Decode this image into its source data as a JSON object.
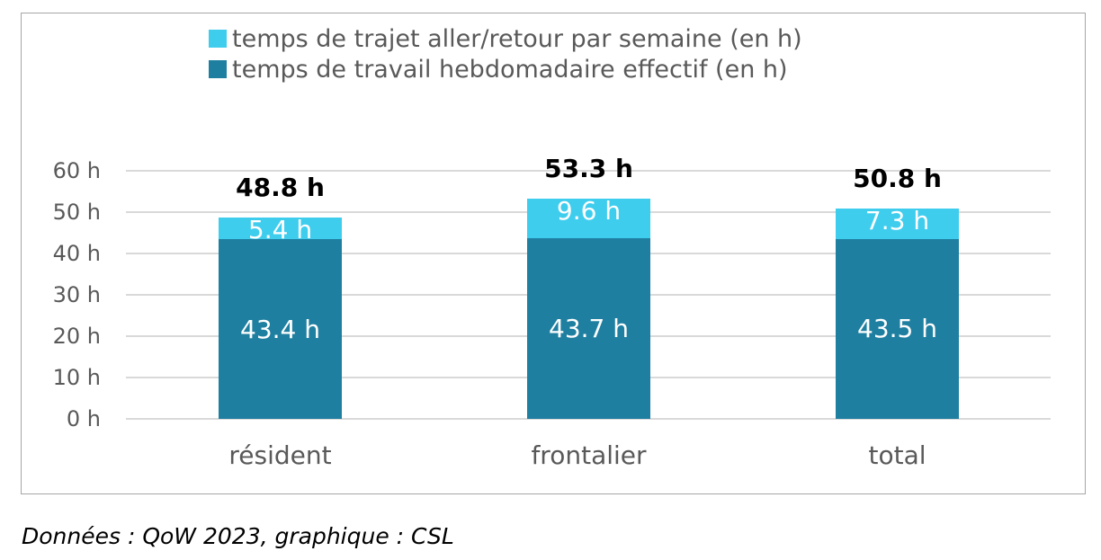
{
  "chart_data": {
    "type": "bar",
    "stacked": true,
    "categories": [
      "résident",
      "frontalier",
      "total"
    ],
    "series": [
      {
        "name": "temps de travail hebdomadaire effectif (en h)",
        "values": [
          43.4,
          43.7,
          43.5
        ],
        "color": "#1f7fa0",
        "labels": [
          "43.4 h",
          "43.7 h",
          "43.5 h"
        ]
      },
      {
        "name": "temps de trajet aller/retour par semaine (en h)",
        "values": [
          5.4,
          9.6,
          7.3
        ],
        "color": "#3fcdee",
        "labels": [
          "5.4 h",
          "9.6 h",
          "7.3 h"
        ]
      }
    ],
    "totals": [
      48.8,
      53.3,
      50.8
    ],
    "total_labels": [
      "48.8 h",
      "53.3 h",
      "50.8 h"
    ],
    "ylim": [
      0,
      60
    ],
    "yticks": [
      "0 h",
      "10 h",
      "20 h",
      "30 h",
      "40 h",
      "50 h",
      "60 h"
    ],
    "grid": true,
    "legend_position": "top",
    "title": "",
    "xlabel": "",
    "ylabel": ""
  },
  "legend": [
    {
      "label": "temps de trajet aller/retour par semaine (en h)",
      "color": "#3fcdee"
    },
    {
      "label": "temps de travail hebdomadaire effectif (en h)",
      "color": "#1f7fa0"
    }
  ],
  "caption": "Données : QoW 2023, graphique : CSL"
}
